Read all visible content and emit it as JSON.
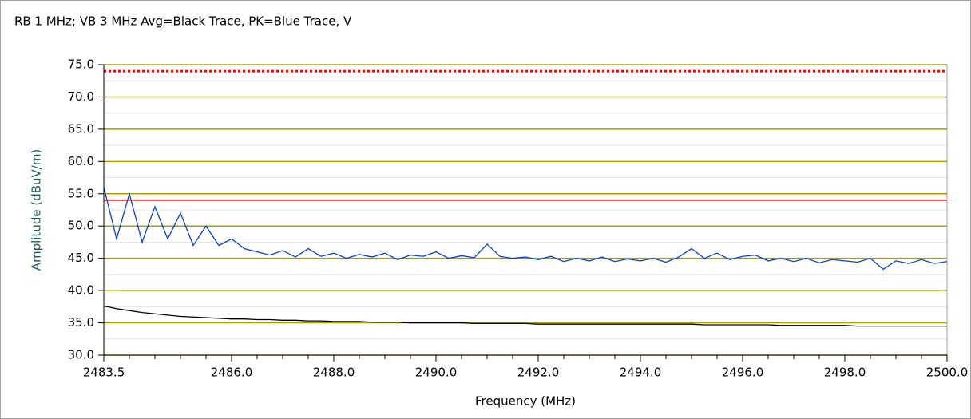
{
  "chart_data": {
    "type": "line",
    "title": "RB 1 MHz; VB 3 MHz Avg=Black Trace, PK=Blue Trace, V",
    "x_label": "Frequency (MHz)",
    "y_label": "Amplitude (dBuV/m)",
    "xlim": [
      2483.5,
      2500.0
    ],
    "ylim": [
      30,
      75
    ],
    "xticks": [
      {
        "value": 2483.5,
        "label": "2483.5"
      },
      {
        "value": 2486,
        "label": "2486.0"
      },
      {
        "value": 2488,
        "label": "2488.0"
      },
      {
        "value": 2490,
        "label": "2490.0"
      },
      {
        "value": 2492,
        "label": "2492.0"
      },
      {
        "value": 2494,
        "label": "2494.0"
      },
      {
        "value": 2496,
        "label": "2496.0"
      },
      {
        "value": 2498,
        "label": "2498.0"
      },
      {
        "value": 2500,
        "label": "2500.0"
      }
    ],
    "x_minor_ticks": [
      2484,
      2484.5,
      2485,
      2485.5,
      2486.5,
      2487,
      2487.5,
      2488.5,
      2489,
      2489.5,
      2490.5,
      2491,
      2491.5,
      2492.5,
      2493,
      2493.5,
      2494.5,
      2495,
      2495.5,
      2496.5,
      2497,
      2497.5,
      2498.5,
      2499,
      2499.5
    ],
    "yticks": [
      {
        "value": 30,
        "label": "30.0"
      },
      {
        "value": 35,
        "label": "35.0"
      },
      {
        "value": 40,
        "label": "40.0"
      },
      {
        "value": 45,
        "label": "45.0"
      },
      {
        "value": 50,
        "label": "50.0"
      },
      {
        "value": 55,
        "label": "55.0"
      },
      {
        "value": 60,
        "label": "60.0"
      },
      {
        "value": 65,
        "label": "65.0"
      },
      {
        "value": 70,
        "label": "70.0"
      },
      {
        "value": 75,
        "label": "75.0"
      }
    ],
    "y_minor_ticks": [
      32.5,
      37.5,
      42.5,
      47.5,
      52.5,
      57.5,
      62.5,
      67.5,
      72.5
    ],
    "grid": true,
    "grid_color": "#a8a000",
    "minor_grid_color": "#e4e4e4",
    "limits": [
      {
        "value": 74,
        "color": "#ff0000",
        "style": "dotted"
      },
      {
        "value": 54,
        "color": "#ff0000",
        "style": "solid"
      }
    ],
    "x": [
      2483.5,
      2483.75,
      2484,
      2484.25,
      2484.5,
      2484.75,
      2485,
      2485.25,
      2485.5,
      2485.75,
      2486,
      2486.25,
      2486.5,
      2486.75,
      2487,
      2487.25,
      2487.5,
      2487.75,
      2488,
      2488.25,
      2488.5,
      2488.75,
      2489,
      2489.25,
      2489.5,
      2489.75,
      2490,
      2490.25,
      2490.5,
      2490.75,
      2491,
      2491.25,
      2491.5,
      2491.75,
      2492,
      2492.25,
      2492.5,
      2492.75,
      2493,
      2493.25,
      2493.5,
      2493.75,
      2494,
      2494.25,
      2494.5,
      2494.75,
      2495,
      2495.25,
      2495.5,
      2495.75,
      2496,
      2496.25,
      2496.5,
      2496.75,
      2497,
      2497.25,
      2497.5,
      2497.75,
      2498,
      2498.25,
      2498.5,
      2498.75,
      2499,
      2499.25,
      2499.5,
      2499.75,
      2500
    ],
    "series": [
      {
        "color": "#0a3fd6",
        "values": [
          56,
          48,
          55,
          47.5,
          53,
          48,
          52,
          47,
          50,
          47,
          48,
          46.5,
          46,
          45.5,
          46.2,
          45.2,
          46.5,
          45.3,
          45.8,
          45,
          45.6,
          45.2,
          45.8,
          44.8,
          45.5,
          45.3,
          46,
          45,
          45.4,
          45.1,
          47.2,
          45.3,
          45,
          45.2,
          44.8,
          45.3,
          44.5,
          45,
          44.6,
          45.2,
          44.5,
          44.9,
          44.6,
          45,
          44.4,
          45.2,
          46.5,
          45,
          45.8,
          44.8,
          45.3,
          45.5,
          44.6,
          45,
          44.5,
          45,
          44.3,
          44.8,
          44.6,
          44.4,
          45,
          43.3,
          44.6,
          44.2,
          44.8,
          44.2,
          44.5
        ]
      },
      {
        "color": "#000000",
        "values": [
          37.6,
          37.2,
          36.9,
          36.6,
          36.4,
          36.2,
          36.0,
          35.9,
          35.8,
          35.7,
          35.6,
          35.6,
          35.5,
          35.5,
          35.4,
          35.4,
          35.3,
          35.3,
          35.2,
          35.2,
          35.2,
          35.1,
          35.1,
          35.1,
          35.0,
          35.0,
          35.0,
          35.0,
          35.0,
          34.9,
          34.9,
          34.9,
          34.9,
          34.9,
          34.8,
          34.8,
          34.8,
          34.8,
          34.8,
          34.8,
          34.8,
          34.8,
          34.8,
          34.8,
          34.8,
          34.8,
          34.8,
          34.7,
          34.7,
          34.7,
          34.7,
          34.7,
          34.7,
          34.6,
          34.6,
          34.6,
          34.6,
          34.6,
          34.6,
          34.5,
          34.5,
          34.5,
          34.5,
          34.5,
          34.5,
          34.5,
          34.5
        ]
      }
    ]
  }
}
